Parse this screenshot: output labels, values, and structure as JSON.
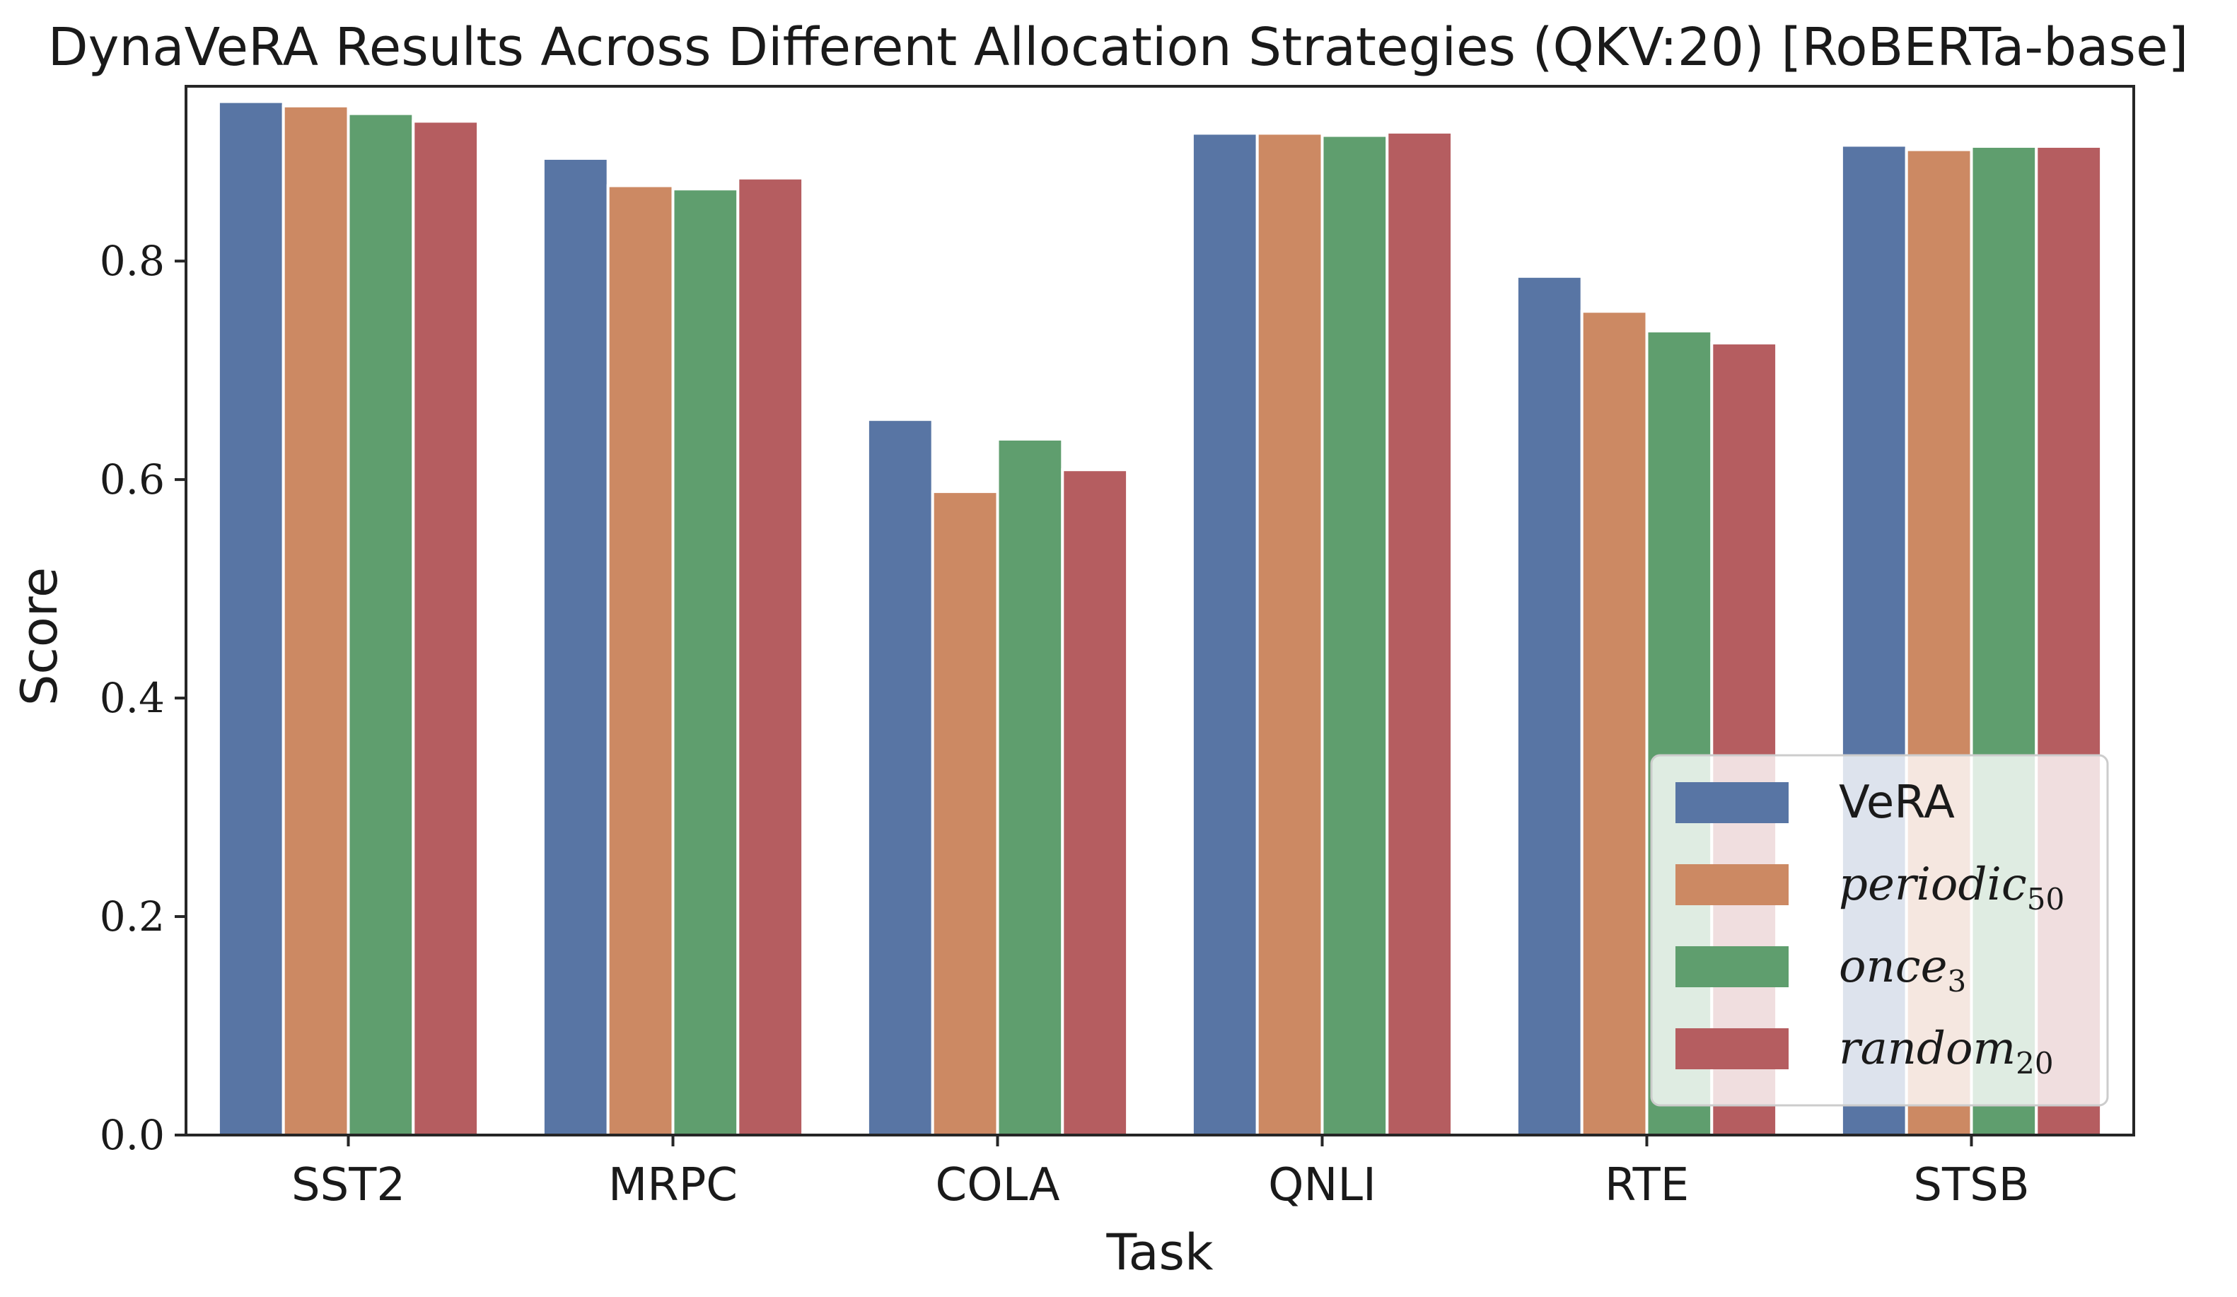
{
  "chart_data": {
    "type": "bar",
    "title": "DynaVeRA Results Across Different Allocation Strategies (QKV:20) [RoBERTa-base]",
    "xlabel": "Task",
    "ylabel": "Score",
    "ylim": [
      0,
      0.96
    ],
    "yticks": [
      "0.0",
      "0.2",
      "0.4",
      "0.6",
      "0.8"
    ],
    "ytick_values": [
      0,
      0.2,
      0.4,
      0.6,
      0.8
    ],
    "grid": false,
    "legend_position": "lower-right",
    "categories": [
      "SST2",
      "MRPC",
      "COLA",
      "QNLI",
      "RTE",
      "STSB"
    ],
    "series": [
      {
        "name": "VeRA",
        "base": "VeRA",
        "sub": "",
        "italic": false,
        "color": "#5875a4",
        "values": [
          0.946,
          0.894,
          0.655,
          0.917,
          0.786,
          0.906
        ]
      },
      {
        "name": "periodic50",
        "base": "periodic",
        "sub": "50",
        "italic": true,
        "color": "#cc8963",
        "values": [
          0.942,
          0.869,
          0.589,
          0.917,
          0.754,
          0.902
        ]
      },
      {
        "name": "once3",
        "base": "once",
        "sub": "3",
        "italic": true,
        "color": "#5f9e6e",
        "values": [
          0.935,
          0.866,
          0.637,
          0.915,
          0.736,
          0.905
        ]
      },
      {
        "name": "random20",
        "base": "random",
        "sub": "20",
        "italic": true,
        "color": "#b55d60",
        "values": [
          0.928,
          0.876,
          0.609,
          0.918,
          0.725,
          0.905
        ]
      }
    ]
  }
}
